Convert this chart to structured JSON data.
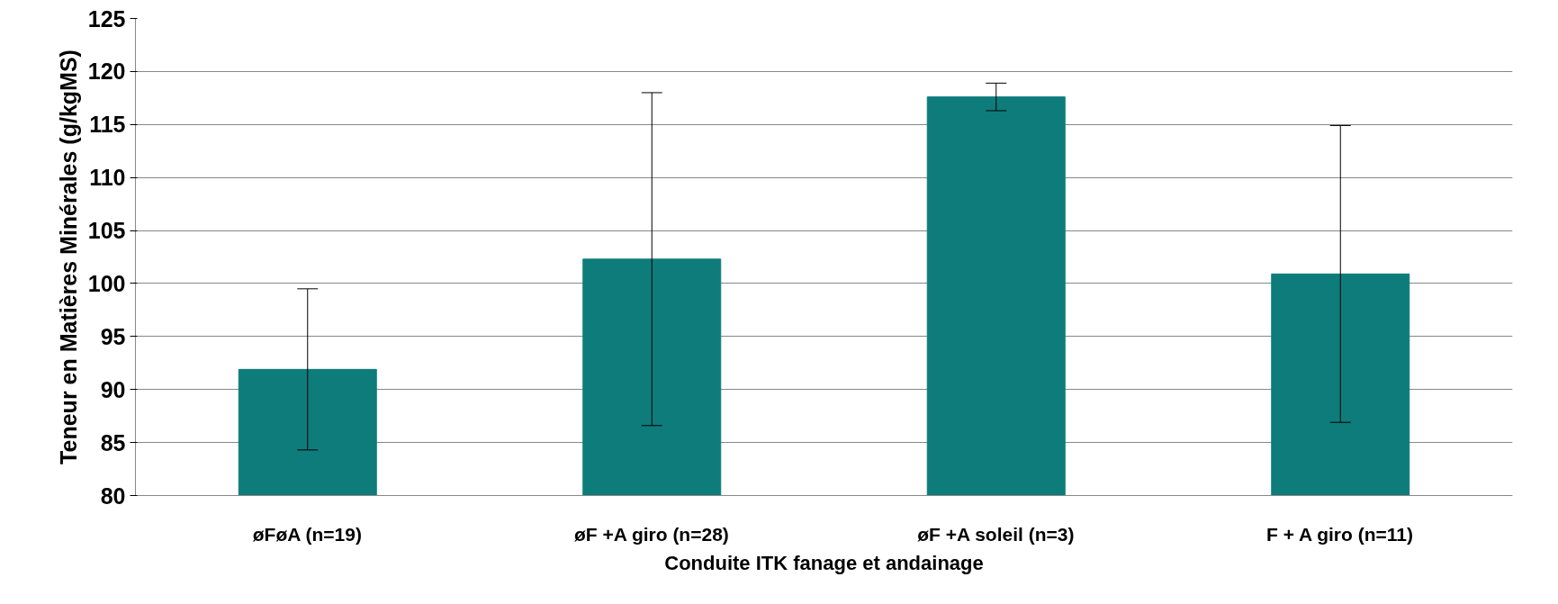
{
  "chart_data": {
    "type": "bar",
    "xlabel": "Conduite ITK fanage et andainage",
    "ylabel": "Teneur en Matières Minérales (g/kgMS)",
    "categories": [
      "øFøA (n=19)",
      "øF +A giro (n=28)",
      "øF +A soleil (n=3)",
      "F + A giro (n=11)"
    ],
    "values": [
      91.9,
      102.3,
      117.6,
      100.9
    ],
    "errors": [
      7.6,
      15.7,
      1.3,
      14.0
    ],
    "color": "#0e7c7b",
    "ylim": [
      80,
      125
    ],
    "yticks": [
      80,
      85,
      90,
      95,
      100,
      105,
      110,
      115,
      120,
      125
    ],
    "grid": "y"
  }
}
